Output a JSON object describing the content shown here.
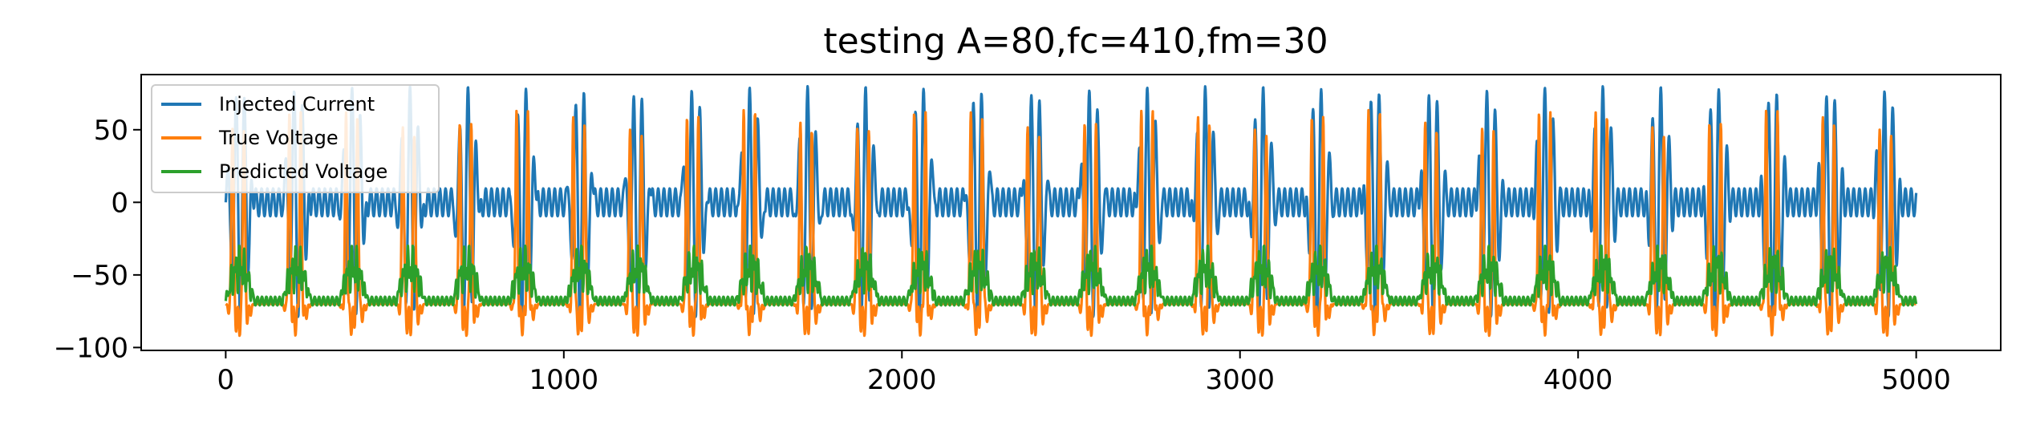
{
  "chart_data": {
    "type": "line",
    "title": "testing A=80,fc=410,fm=30",
    "xlabel": "",
    "ylabel": "",
    "xlim": [
      -250,
      5250
    ],
    "ylim": [
      -102,
      88
    ],
    "x_ticks": [
      0,
      1000,
      2000,
      3000,
      4000,
      5000
    ],
    "y_ticks": [
      -100,
      -50,
      0,
      50
    ],
    "x_tick_labels": [
      "0",
      "1000",
      "2000",
      "3000",
      "4000",
      "5000"
    ],
    "y_tick_labels": [
      "−100",
      "−50",
      "0",
      "50"
    ],
    "grid": false,
    "legend_position": "top-left",
    "x_range": [
      0,
      5000
    ],
    "series": [
      {
        "name": "Injected Current",
        "color": "#1f77b4",
        "amplitude": 80,
        "carrier_frequency": 410,
        "modulation_frequency": 30,
        "max": 80,
        "min": -80,
        "baseline": 0
      },
      {
        "name": "True Voltage",
        "color": "#ff7f0e",
        "resting": -70,
        "spike_peak": 65,
        "min": -93,
        "spike_interval": 168
      },
      {
        "name": "Predicted Voltage",
        "color": "#2ca02c",
        "resting": -68,
        "max": -30,
        "min": -75,
        "mean_active": -45
      }
    ]
  }
}
